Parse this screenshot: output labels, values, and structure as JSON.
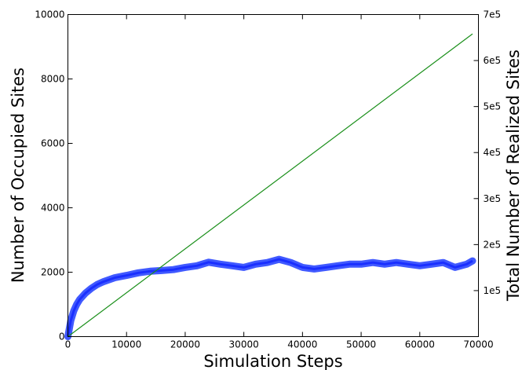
{
  "chart_data": {
    "type": "line",
    "title": "",
    "xlabel": "Simulation Steps",
    "ylabel": "Number of Occupied Sites",
    "y2label": "Total Number of Realized Sites",
    "xlim": [
      0,
      70000
    ],
    "ylim": [
      0,
      10000
    ],
    "y2lim": [
      0,
      700000
    ],
    "grid": false,
    "x_ticks": [
      "0",
      "10000",
      "20000",
      "30000",
      "40000",
      "50000",
      "60000",
      "70000"
    ],
    "y_ticks": [
      "0",
      "2000",
      "4000",
      "6000",
      "8000",
      "10000"
    ],
    "y2_ticks": [
      "1e5",
      "2e5",
      "3e5",
      "4e5",
      "5e5",
      "6e5",
      "7e5"
    ],
    "series": [
      {
        "axis": "left",
        "color": "#1f3cff",
        "x": [
          0,
          500,
          1000,
          1500,
          2000,
          3000,
          4000,
          5000,
          6000,
          8000,
          10000,
          12000,
          14000,
          16000,
          18000,
          20000,
          22000,
          24000,
          26000,
          28000,
          30000,
          32000,
          34000,
          36000,
          38000,
          40000,
          42000,
          44000,
          46000,
          48000,
          50000,
          52000,
          54000,
          56000,
          58000,
          60000,
          62000,
          64000,
          66000,
          68000,
          69000
        ],
        "y": [
          0,
          500,
          800,
          1000,
          1150,
          1350,
          1500,
          1620,
          1700,
          1830,
          1900,
          1980,
          2030,
          2050,
          2080,
          2150,
          2200,
          2310,
          2250,
          2200,
          2150,
          2250,
          2300,
          2400,
          2300,
          2150,
          2100,
          2150,
          2200,
          2250,
          2250,
          2300,
          2250,
          2300,
          2250,
          2200,
          2250,
          2300,
          2150,
          2250,
          2350
        ]
      },
      {
        "axis": "right",
        "color": "#1a8f1a",
        "x": [
          0,
          69000
        ],
        "y": [
          0,
          658000
        ]
      }
    ]
  }
}
